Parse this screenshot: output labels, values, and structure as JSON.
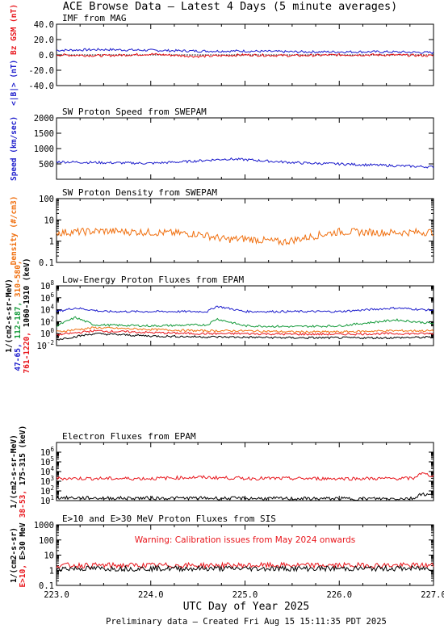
{
  "title": "ACE Browse Data – Latest 4 Days (5 minute averages)",
  "footer": "Preliminary data – Created Fri Aug 15 15:11:35 PDT 2025",
  "xaxis": {
    "label": "UTC Day of Year 2025",
    "ticks": [
      "223.0",
      "224.0",
      "225.0",
      "226.0",
      "227.0"
    ],
    "range": [
      223.0,
      227.0
    ]
  },
  "colors": {
    "black": "#000000",
    "red": "#e8151b",
    "blue": "#1c1ccc",
    "green": "#149a3a",
    "orange": "#f07010"
  },
  "chart_data": [
    {
      "type": "line",
      "title": "IMF from MAG",
      "ylabel_parts": [
        {
          "text": "<|B|> (nT)",
          "color": "#1c1ccc"
        },
        {
          "text": "Bz GSM (nT)",
          "color": "#e8151b"
        }
      ],
      "ylim": [
        -40,
        40
      ],
      "scale": "linear",
      "yticks": [
        "40.0",
        "20.0",
        "0.0",
        "-20.0",
        "-40.0"
      ],
      "series": [
        {
          "name": "<|B|>",
          "color": "#1c1ccc",
          "x": [
            223.0,
            223.5,
            224.0,
            224.5,
            225.0,
            225.5,
            226.0,
            226.5,
            227.0
          ],
          "y": [
            6,
            7,
            6,
            5,
            5,
            4,
            4,
            4,
            3
          ]
        },
        {
          "name": "Bz GSM",
          "color": "#e8151b",
          "x": [
            223.0,
            223.5,
            224.0,
            224.5,
            225.0,
            225.5,
            226.0,
            226.5,
            227.0
          ],
          "y": [
            0,
            -1,
            1,
            -2,
            0,
            -1,
            0,
            0,
            -1
          ]
        }
      ]
    },
    {
      "type": "line",
      "title": "SW Proton Speed from SWEPAM",
      "ylabel_parts": [
        {
          "text": "Speed (km/sec)",
          "color": "#1c1ccc"
        }
      ],
      "ylim": [
        0,
        2000
      ],
      "scale": "linear",
      "yticks": [
        "2000",
        "1500",
        "1000",
        "500"
      ],
      "series": [
        {
          "name": "Speed",
          "color": "#1c1ccc",
          "x": [
            223.0,
            223.5,
            224.0,
            224.4,
            224.8,
            225.0,
            225.3,
            225.6,
            226.0,
            226.5,
            227.0
          ],
          "y": [
            570,
            540,
            520,
            580,
            660,
            640,
            580,
            530,
            500,
            450,
            400
          ]
        }
      ]
    },
    {
      "type": "line",
      "title": "SW Proton Density from SWEPAM",
      "ylabel_parts": [
        {
          "text": "Density (#/cm3)",
          "color": "#f07010"
        }
      ],
      "ylim": [
        0.1,
        100
      ],
      "scale": "log",
      "yticks": [
        "100",
        "10",
        "1",
        "0.1"
      ],
      "series": [
        {
          "name": "Density",
          "color": "#f07010",
          "x": [
            223.0,
            223.5,
            224.0,
            224.5,
            224.8,
            225.0,
            225.4,
            225.8,
            226.0,
            226.5,
            227.0
          ],
          "y": [
            2.5,
            3,
            2.6,
            2.2,
            1.2,
            1.3,
            0.9,
            2,
            2.8,
            2.5,
            2.7
          ]
        }
      ]
    },
    {
      "type": "line",
      "title": "Low-Energy Proton Fluxes from EPAM",
      "ylabel_parts": [
        {
          "text": "1/(cm2-s-sr-MeV)",
          "color": "#000000"
        },
        {
          "text": "47-65,",
          "color": "#1c1ccc"
        },
        {
          "text": "112-187,",
          "color": "#149a3a"
        },
        {
          "text": "310-580,",
          "color": "#f07010"
        },
        {
          "text": "761-1220,",
          "color": "#e8151b"
        },
        {
          "text": "1060-1910 (keV)",
          "color": "#000000"
        }
      ],
      "ylim": [
        0.01,
        100000000
      ],
      "scale": "log",
      "yticks": [
        "10^8",
        "10^6",
        "10^4",
        "10^2",
        "10^0",
        "10^-2"
      ],
      "series": [
        {
          "name": "47-65",
          "color": "#1c1ccc",
          "x": [
            223.0,
            223.2,
            223.5,
            224.0,
            224.6,
            224.7,
            225.0,
            225.5,
            226.0,
            226.6,
            227.0
          ],
          "y": [
            5000,
            20000,
            5000,
            5000,
            5000,
            40000,
            5000,
            5000,
            5000,
            20000,
            8000
          ]
        },
        {
          "name": "112-187",
          "color": "#149a3a",
          "x": [
            223.0,
            223.2,
            223.4,
            224.0,
            224.6,
            224.7,
            225.0,
            225.5,
            226.0,
            226.6,
            227.0
          ],
          "y": [
            20,
            500,
            30,
            20,
            30,
            300,
            20,
            15,
            20,
            200,
            50
          ]
        },
        {
          "name": "310-580",
          "color": "#f07010",
          "x": [
            223.0,
            223.4,
            224.0,
            224.5,
            225.0,
            225.5,
            226.0,
            226.5,
            227.0
          ],
          "y": [
            2,
            10,
            5,
            3,
            3,
            2,
            2,
            3,
            3
          ]
        },
        {
          "name": "761-1220",
          "color": "#e8151b",
          "x": [
            223.0,
            223.4,
            224.0,
            224.5,
            225.0,
            225.5,
            226.0,
            226.5,
            227.0
          ],
          "y": [
            0.6,
            3,
            1.5,
            1,
            1,
            0.8,
            0.8,
            1,
            1
          ]
        },
        {
          "name": "1060-1910",
          "color": "#000000",
          "x": [
            223.0,
            223.4,
            224.0,
            224.5,
            225.0,
            225.5,
            226.0,
            226.5,
            227.0
          ],
          "y": [
            0.1,
            1,
            0.4,
            0.3,
            0.25,
            0.2,
            0.2,
            0.2,
            0.25
          ]
        }
      ]
    },
    {
      "type": "line",
      "title": "Electron Fluxes from EPAM",
      "ylabel_parts": [
        {
          "text": "1/(cm2-s-sr-MeV)",
          "color": "#000000"
        },
        {
          "text": "38-53,",
          "color": "#e8151b"
        },
        {
          "text": "175-315 (keV)",
          "color": "#000000"
        }
      ],
      "ylim": [
        10,
        10000000
      ],
      "scale": "log",
      "yticks": [
        "10^6",
        "10^5",
        "10^4",
        "10^3",
        "10^2",
        "10^1"
      ],
      "series": [
        {
          "name": "38-53",
          "color": "#e8151b",
          "x": [
            223.0,
            223.5,
            224.0,
            224.5,
            225.0,
            225.5,
            226.0,
            226.5,
            226.8,
            226.85,
            227.0
          ],
          "y": [
            2000,
            1900,
            1900,
            2600,
            2000,
            1900,
            1900,
            1900,
            2000,
            7000,
            3500
          ]
        },
        {
          "name": "175-315",
          "color": "#000000",
          "x": [
            223.0,
            223.5,
            224.0,
            224.5,
            225.0,
            225.5,
            226.0,
            226.5,
            226.8,
            226.85,
            227.0
          ],
          "y": [
            20,
            18,
            18,
            18,
            17,
            16,
            16,
            16,
            17,
            50,
            35
          ]
        }
      ]
    },
    {
      "type": "line",
      "title": "E>10 and E>30 MeV Proton Fluxes from SIS",
      "annotation": "Warning: Calibration issues from May 2024 onwards",
      "ylabel_parts": [
        {
          "text": "1/(cm2-s-sr)",
          "color": "#000000"
        },
        {
          "text": "E>10,",
          "color": "#e8151b"
        },
        {
          "text": "E>30 MeV",
          "color": "#000000"
        }
      ],
      "ylim": [
        0.1,
        1000
      ],
      "scale": "log",
      "yticks": [
        "1000",
        "100",
        "10",
        "1",
        "0.1"
      ],
      "series": [
        {
          "name": "E>10",
          "color": "#e8151b",
          "x": [
            223.0,
            224.0,
            225.0,
            226.0,
            227.0
          ],
          "y": [
            2.1,
            2.1,
            2.1,
            2.1,
            2.1
          ]
        },
        {
          "name": "E>30",
          "color": "#000000",
          "x": [
            223.0,
            224.0,
            225.0,
            226.0,
            227.0
          ],
          "y": [
            1.3,
            1.3,
            1.3,
            1.3,
            1.3
          ]
        }
      ]
    }
  ]
}
